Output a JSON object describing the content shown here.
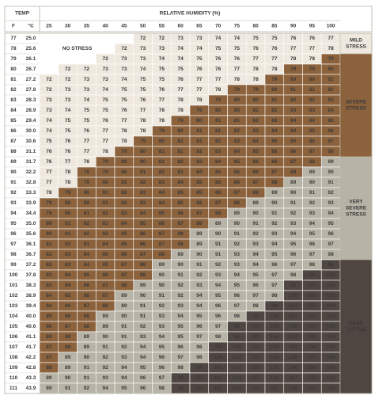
{
  "header": {
    "temp": "TEMP",
    "humidity": "RELATIVE HUMIDITY (%)",
    "f": "F",
    "c": "°C"
  },
  "no_stress_label": "NO STRESS",
  "humidity": [
    25,
    30,
    35,
    40,
    45,
    50,
    55,
    60,
    65,
    70,
    75,
    80,
    85,
    90,
    95,
    100
  ],
  "zones": [
    {
      "label": [
        "NO STRESS"
      ],
      "color": "#ffffff",
      "text_color": "#3a3a3a"
    },
    {
      "label": [
        "MILD",
        "STRESS"
      ],
      "color": "#eee8de",
      "text_color": "#3a3a3a",
      "min": 72
    },
    {
      "label": [
        "SEVERE",
        "STRESS"
      ],
      "color": "#8c623c",
      "text_color": "#ffffff",
      "min": 79
    },
    {
      "label": [
        "VERY",
        "SEVERE",
        "STRESS"
      ],
      "color": "#b7b3a6",
      "text_color": "#3a3a3a",
      "min": 89
    },
    {
      "label": [
        "DEAD",
        "CATTLE"
      ],
      "color": "#4f4641",
      "text_color": "#ffffff",
      "min": 99
    }
  ],
  "rows": [
    {
      "f": 77,
      "c": "25.0",
      "values": [
        null,
        null,
        null,
        null,
        null,
        72,
        72,
        73,
        73,
        74,
        74,
        75,
        75,
        76,
        76,
        77
      ]
    },
    {
      "f": 78,
      "c": "25.6",
      "values": [
        null,
        null,
        null,
        null,
        72,
        73,
        73,
        74,
        74,
        75,
        75,
        76,
        76,
        77,
        77,
        78
      ]
    },
    {
      "f": 79,
      "c": "26.1",
      "values": [
        null,
        null,
        null,
        72,
        73,
        73,
        74,
        74,
        75,
        76,
        76,
        77,
        77,
        78,
        78,
        79
      ]
    },
    {
      "f": 80,
      "c": "26.7",
      "values": [
        null,
        72,
        72,
        73,
        73,
        74,
        75,
        75,
        76,
        76,
        77,
        78,
        78,
        79,
        79,
        80
      ]
    },
    {
      "f": 81,
      "c": "27.2",
      "values": [
        72,
        72,
        73,
        73,
        74,
        75,
        75,
        76,
        77,
        77,
        78,
        78,
        79,
        80,
        80,
        81
      ]
    },
    {
      "f": 82,
      "c": "27.8",
      "values": [
        72,
        73,
        73,
        74,
        75,
        75,
        76,
        77,
        77,
        78,
        79,
        79,
        80,
        81,
        81,
        82
      ]
    },
    {
      "f": 83,
      "c": "28.3",
      "values": [
        73,
        73,
        74,
        75,
        75,
        76,
        77,
        78,
        78,
        79,
        80,
        80,
        81,
        82,
        82,
        83
      ]
    },
    {
      "f": 84,
      "c": "28.9",
      "values": [
        73,
        74,
        75,
        75,
        76,
        77,
        78,
        78,
        79,
        80,
        80,
        81,
        82,
        83,
        83,
        84
      ]
    },
    {
      "f": 85,
      "c": "29.4",
      "values": [
        74,
        75,
        75,
        76,
        77,
        78,
        78,
        79,
        80,
        81,
        81,
        82,
        83,
        84,
        84,
        85
      ]
    },
    {
      "f": 86,
      "c": "30.0",
      "values": [
        74,
        75,
        76,
        77,
        78,
        78,
        79,
        80,
        81,
        81,
        82,
        83,
        84,
        84,
        85,
        86
      ]
    },
    {
      "f": 87,
      "c": "30.6",
      "values": [
        75,
        76,
        77,
        77,
        78,
        79,
        80,
        81,
        81,
        82,
        83,
        84,
        85,
        85,
        86,
        87
      ]
    },
    {
      "f": 88,
      "c": "31.1",
      "values": [
        76,
        76,
        77,
        78,
        79,
        80,
        81,
        81,
        82,
        83,
        84,
        85,
        86,
        86,
        87,
        88
      ]
    },
    {
      "f": 89,
      "c": "31.7",
      "values": [
        76,
        77,
        78,
        79,
        80,
        80,
        81,
        82,
        83,
        84,
        85,
        86,
        86,
        87,
        88,
        89
      ]
    },
    {
      "f": 90,
      "c": "32.2",
      "values": [
        77,
        78,
        79,
        79,
        80,
        81,
        82,
        83,
        84,
        85,
        86,
        86,
        87,
        88,
        89,
        90
      ]
    },
    {
      "f": 91,
      "c": "32.8",
      "values": [
        77,
        78,
        79,
        80,
        81,
        82,
        83,
        84,
        85,
        86,
        86,
        87,
        88,
        89,
        90,
        91
      ]
    },
    {
      "f": 92,
      "c": "33.3",
      "values": [
        78,
        79,
        80,
        81,
        82,
        83,
        84,
        85,
        85,
        86,
        87,
        88,
        89,
        90,
        91,
        92
      ]
    },
    {
      "f": 93,
      "c": "33.9",
      "values": [
        79,
        80,
        80,
        81,
        82,
        83,
        84,
        85,
        86,
        87,
        88,
        89,
        90,
        91,
        92,
        93
      ]
    },
    {
      "f": 94,
      "c": "34.4",
      "values": [
        79,
        80,
        81,
        82,
        83,
        84,
        85,
        86,
        87,
        88,
        89,
        90,
        91,
        92,
        93,
        94
      ]
    },
    {
      "f": 95,
      "c": "35.0",
      "values": [
        80,
        81,
        82,
        83,
        84,
        85,
        86,
        87,
        88,
        89,
        90,
        91,
        92,
        93,
        94,
        95
      ]
    },
    {
      "f": 96,
      "c": "35.6",
      "values": [
        80,
        81,
        82,
        83,
        85,
        86,
        87,
        88,
        89,
        90,
        91,
        92,
        93,
        94,
        95,
        96
      ]
    },
    {
      "f": 97,
      "c": "36.1",
      "values": [
        81,
        82,
        83,
        84,
        85,
        86,
        87,
        88,
        89,
        91,
        92,
        93,
        94,
        95,
        96,
        97
      ]
    },
    {
      "f": 98,
      "c": "36.7",
      "values": [
        82,
        83,
        84,
        85,
        86,
        87,
        88,
        89,
        90,
        91,
        93,
        94,
        95,
        96,
        97,
        98
      ]
    },
    {
      "f": 99,
      "c": "37.2",
      "values": [
        82,
        83,
        84,
        85,
        87,
        88,
        89,
        90,
        91,
        92,
        93,
        94,
        96,
        97,
        98,
        99
      ]
    },
    {
      "f": 100,
      "c": "37.8",
      "values": [
        83,
        84,
        85,
        86,
        87,
        88,
        90,
        91,
        92,
        93,
        94,
        95,
        97,
        98,
        99,
        100
      ]
    },
    {
      "f": 101,
      "c": "38.3",
      "values": [
        83,
        84,
        86,
        87,
        88,
        89,
        90,
        92,
        93,
        94,
        95,
        96,
        97,
        99,
        100,
        101
      ]
    },
    {
      "f": 102,
      "c": "38.9",
      "values": [
        84,
        85,
        86,
        87,
        89,
        90,
        91,
        92,
        94,
        95,
        96,
        97,
        98,
        100,
        101,
        102
      ]
    },
    {
      "f": 103,
      "c": "39.4",
      "values": [
        84,
        86,
        87,
        88,
        89,
        91,
        92,
        93,
        94,
        96,
        97,
        98,
        99,
        101,
        102,
        103
      ]
    },
    {
      "f": 104,
      "c": "40.0",
      "values": [
        85,
        86,
        88,
        89,
        90,
        91,
        93,
        94,
        95,
        96,
        98,
        99,
        100,
        101,
        103,
        104
      ]
    },
    {
      "f": 105,
      "c": "40.6",
      "values": [
        86,
        87,
        88,
        89,
        91,
        92,
        93,
        95,
        96,
        97,
        99,
        100,
        101,
        102,
        104,
        105
      ]
    },
    {
      "f": 106,
      "c": "41.1",
      "values": [
        86,
        88,
        89,
        90,
        91,
        93,
        94,
        95,
        97,
        98,
        99,
        101,
        102,
        103,
        105,
        106
      ]
    },
    {
      "f": 107,
      "c": "41.7",
      "values": [
        87,
        88,
        89,
        91,
        92,
        94,
        95,
        96,
        98,
        99,
        100,
        102,
        103,
        104,
        106,
        107
      ]
    },
    {
      "f": 108,
      "c": "42.2",
      "values": [
        87,
        89,
        90,
        92,
        93,
        94,
        96,
        97,
        98,
        100,
        101,
        103,
        104,
        105,
        107,
        108
      ]
    },
    {
      "f": 109,
      "c": "42.8",
      "values": [
        88,
        89,
        91,
        92,
        94,
        95,
        96,
        98,
        99,
        101,
        102,
        103,
        105,
        106,
        108,
        109
      ]
    },
    {
      "f": 110,
      "c": "43.3",
      "values": [
        89,
        90,
        91,
        93,
        94,
        96,
        97,
        99,
        100,
        101,
        103,
        104,
        106,
        107,
        109,
        110
      ]
    },
    {
      "f": 111,
      "c": "43.9",
      "values": [
        89,
        91,
        92,
        94,
        95,
        96,
        98,
        99,
        101,
        102,
        104,
        105,
        107,
        108,
        110,
        111
      ]
    }
  ]
}
